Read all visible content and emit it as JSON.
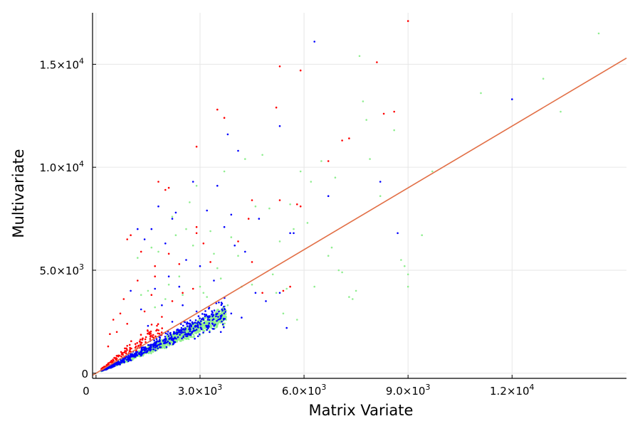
{
  "chart_data": {
    "type": "scatter",
    "xlabel": "Matrix Variate",
    "ylabel": "Multivariate",
    "xlim": [
      -100,
      15300
    ],
    "ylim": [
      -250,
      17500
    ],
    "grid": true,
    "legend": "none",
    "x_ticks": [
      {
        "value": 0,
        "mantissa": "0",
        "exp": ""
      },
      {
        "value": 3000,
        "mantissa": "3.0×10",
        "exp": "3"
      },
      {
        "value": 6000,
        "mantissa": "6.0×10",
        "exp": "3"
      },
      {
        "value": 9000,
        "mantissa": "9.0×10",
        "exp": "3"
      },
      {
        "value": 12000,
        "mantissa": "1.2×10",
        "exp": "4"
      }
    ],
    "y_ticks": [
      {
        "value": 0,
        "mantissa": "0",
        "exp": ""
      },
      {
        "value": 5000,
        "mantissa": "5.0×10",
        "exp": "3"
      },
      {
        "value": 10000,
        "mantissa": "1.0×10",
        "exp": "4"
      },
      {
        "value": 15000,
        "mantissa": "1.5×10",
        "exp": "4"
      }
    ],
    "series": [
      {
        "color": "#90ee90",
        "points": [
          [
            14500,
            16500
          ],
          [
            12900,
            14300
          ],
          [
            13400,
            12700
          ],
          [
            11100,
            13600
          ],
          [
            9700,
            9800
          ],
          [
            9400,
            6700
          ],
          [
            9000,
            4200
          ],
          [
            9000,
            4800
          ],
          [
            8900,
            5200
          ],
          [
            8800,
            5500
          ],
          [
            8600,
            11800
          ],
          [
            8200,
            8600
          ],
          [
            7900,
            10400
          ],
          [
            7700,
            13200
          ],
          [
            7600,
            15400
          ],
          [
            7800,
            12300
          ],
          [
            7500,
            4000
          ],
          [
            7400,
            3600
          ],
          [
            7100,
            4900
          ],
          [
            7000,
            5000
          ],
          [
            6800,
            6100
          ],
          [
            6700,
            5700
          ],
          [
            6500,
            10300
          ],
          [
            6200,
            9300
          ],
          [
            6100,
            7300
          ],
          [
            5900,
            9800
          ],
          [
            5700,
            7000
          ],
          [
            5600,
            8200
          ],
          [
            5500,
            4100
          ],
          [
            5200,
            3900
          ],
          [
            5300,
            6400
          ],
          [
            5100,
            4800
          ],
          [
            5000,
            8000
          ],
          [
            4800,
            10600
          ],
          [
            4600,
            8100
          ],
          [
            4300,
            10400
          ],
          [
            4100,
            5700
          ],
          [
            3900,
            6600
          ],
          [
            3700,
            9800
          ],
          [
            3600,
            4600
          ],
          [
            3400,
            5800
          ],
          [
            3300,
            6900
          ],
          [
            3200,
            3700
          ],
          [
            3100,
            3900
          ],
          [
            3000,
            4200
          ],
          [
            2900,
            9100
          ],
          [
            2800,
            6200
          ],
          [
            2600,
            7000
          ],
          [
            2500,
            3800
          ],
          [
            2400,
            4700
          ],
          [
            2300,
            6700
          ],
          [
            2200,
            7600
          ],
          [
            2100,
            4300
          ],
          [
            2000,
            3600
          ],
          [
            1800,
            5900
          ],
          [
            1700,
            3200
          ],
          [
            1600,
            6100
          ],
          [
            1500,
            4000
          ],
          [
            1300,
            3800
          ],
          [
            1200,
            5600
          ],
          [
            2700,
            8300
          ],
          [
            3500,
            5100
          ],
          [
            4500,
            4300
          ],
          [
            6900,
            9500
          ],
          [
            7300,
            3700
          ],
          [
            5800,
            2600
          ],
          [
            6300,
            4200
          ],
          [
            5400,
            2900
          ],
          [
            4200,
            4200
          ],
          [
            3800,
            3300
          ]
        ],
        "cluster": {
          "n": 1800,
          "slope": 0.75,
          "spread": 0.22,
          "xmax": 3600,
          "seed": 11
        }
      },
      {
        "color": "#0000ff",
        "points": [
          [
            6300,
            16100
          ],
          [
            12000,
            13300
          ],
          [
            8200,
            9300
          ],
          [
            8700,
            6800
          ],
          [
            6700,
            8600
          ],
          [
            5300,
            12000
          ],
          [
            5600,
            6800
          ],
          [
            5700,
            6800
          ],
          [
            3800,
            11600
          ],
          [
            4100,
            10800
          ],
          [
            3500,
            9100
          ],
          [
            2800,
            9300
          ],
          [
            3900,
            7700
          ],
          [
            3700,
            7100
          ],
          [
            3200,
            7900
          ],
          [
            2300,
            7800
          ],
          [
            2200,
            7500
          ],
          [
            1800,
            8100
          ],
          [
            1600,
            7000
          ],
          [
            1200,
            7000
          ],
          [
            1400,
            6500
          ],
          [
            2000,
            6300
          ],
          [
            2600,
            5500
          ],
          [
            3000,
            5200
          ],
          [
            3400,
            4500
          ],
          [
            4300,
            5900
          ],
          [
            4700,
            7500
          ],
          [
            4000,
            6200
          ],
          [
            2100,
            4700
          ],
          [
            1700,
            4100
          ],
          [
            5300,
            3900
          ],
          [
            4600,
            3900
          ],
          [
            5500,
            2200
          ],
          [
            4900,
            3500
          ],
          [
            3900,
            2900
          ],
          [
            3500,
            2900
          ],
          [
            4200,
            2700
          ],
          [
            3100,
            2600
          ],
          [
            2500,
            3300
          ],
          [
            1900,
            3300
          ],
          [
            1000,
            4000
          ],
          [
            1300,
            3100
          ],
          [
            2200,
            2500
          ],
          [
            2800,
            2400
          ],
          [
            3200,
            2100
          ],
          [
            3600,
            2000
          ],
          [
            2600,
            1800
          ],
          [
            1500,
            2300
          ],
          [
            2900,
            3000
          ],
          [
            2400,
            4200
          ]
        ],
        "cluster": {
          "n": 520,
          "slope": 0.8,
          "spread": 0.32,
          "xmax": 3600,
          "seed": 23
        }
      },
      {
        "color": "#ff0000",
        "points": [
          [
            9000,
            17100
          ],
          [
            8100,
            15100
          ],
          [
            5300,
            14900
          ],
          [
            5900,
            14700
          ],
          [
            5200,
            12900
          ],
          [
            3500,
            12800
          ],
          [
            3700,
            12400
          ],
          [
            8300,
            12600
          ],
          [
            8600,
            12700
          ],
          [
            2900,
            11000
          ],
          [
            7300,
            11400
          ],
          [
            7100,
            11300
          ],
          [
            6700,
            10300
          ],
          [
            1800,
            9300
          ],
          [
            2100,
            9000
          ],
          [
            2000,
            8900
          ],
          [
            5300,
            8400
          ],
          [
            5800,
            8200
          ],
          [
            5900,
            8100
          ],
          [
            4500,
            8400
          ],
          [
            4400,
            7500
          ],
          [
            2900,
            7100
          ],
          [
            2900,
            6800
          ],
          [
            1000,
            6700
          ],
          [
            900,
            6500
          ],
          [
            1300,
            5900
          ],
          [
            2100,
            5800
          ],
          [
            1700,
            5200
          ],
          [
            2400,
            5300
          ],
          [
            4100,
            6400
          ],
          [
            4500,
            5400
          ],
          [
            5600,
            4200
          ],
          [
            5400,
            4000
          ],
          [
            1700,
            4700
          ],
          [
            1200,
            4500
          ],
          [
            2500,
            3900
          ],
          [
            1600,
            3800
          ],
          [
            700,
            2900
          ],
          [
            500,
            2600
          ],
          [
            900,
            2400
          ],
          [
            400,
            1900
          ],
          [
            350,
            1300
          ],
          [
            600,
            2000
          ],
          [
            1400,
            3000
          ],
          [
            2200,
            3500
          ],
          [
            2800,
            4100
          ],
          [
            3100,
            6300
          ],
          [
            800,
            3600
          ],
          [
            4800,
            3900
          ],
          [
            3300,
            5400
          ]
        ],
        "cluster": {
          "n": 130,
          "slope": 1.2,
          "spread": 0.3,
          "xmax": 1800,
          "seed": 37
        }
      }
    ],
    "reference_line": {
      "color": "#e26f46",
      "x": [
        -100,
        15300
      ],
      "y": [
        -100,
        15300
      ]
    }
  }
}
